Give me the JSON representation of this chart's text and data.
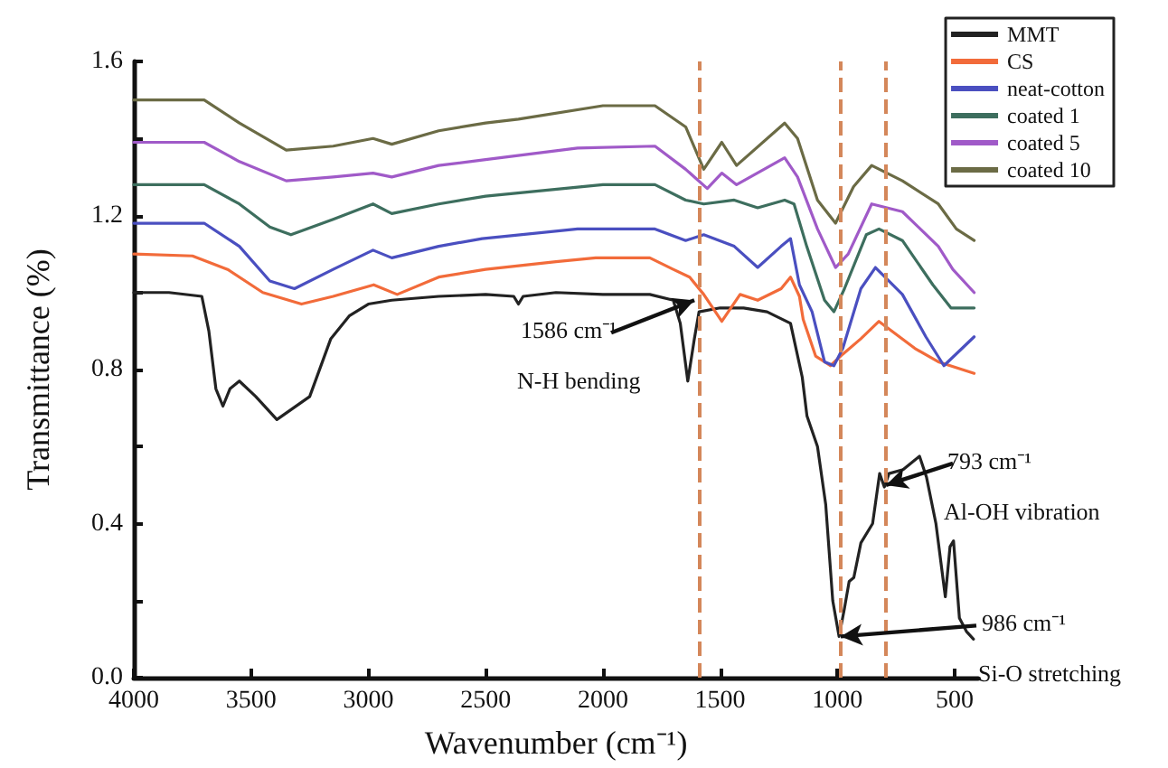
{
  "chart_data": {
    "type": "line",
    "xlabel": "Wavenumber (cm⁻¹)",
    "ylabel": "Transmittance (%)",
    "xlim": [
      4000,
      400
    ],
    "xticks": [
      4000,
      3500,
      3000,
      2500,
      2000,
      1500,
      1000,
      500
    ],
    "ylim": [
      0,
      1.6
    ],
    "yticks": [
      {
        "value": 0,
        "label": "0.0"
      },
      {
        "value": 0.2,
        "label": null
      },
      0.4,
      {
        "value": 0.6,
        "label": null
      },
      0.8,
      {
        "value": 1.0,
        "label": null
      },
      1.2,
      {
        "value": 1.4,
        "label": null
      },
      1.6
    ],
    "grid": false,
    "legend": "top right",
    "marker": "none",
    "line_style": "solid",
    "series": [
      {
        "name": "MMT",
        "color": "#222222",
        "x": [
          4000,
          3850,
          3710,
          3680,
          3650,
          3620,
          3590,
          3550,
          3480,
          3390,
          3320,
          3250,
          3160,
          3080,
          3000,
          2900,
          2700,
          2500,
          2380,
          2360,
          2340,
          2200,
          2000,
          1800,
          1700,
          1670,
          1638,
          1610,
          1590,
          1500,
          1400,
          1300,
          1200,
          1150,
          1130,
          1085,
          1050,
          1020,
          993,
          970,
          950,
          930,
          900,
          850,
          820,
          800,
          780,
          720,
          650,
          620,
          580,
          540,
          520,
          505,
          480,
          450,
          420
        ],
        "values": [
          1.0,
          1.0,
          0.99,
          0.9,
          0.75,
          0.705,
          0.75,
          0.77,
          0.73,
          0.67,
          0.7,
          0.73,
          0.88,
          0.94,
          0.97,
          0.98,
          0.99,
          0.995,
          0.99,
          0.97,
          0.99,
          1.0,
          0.995,
          0.995,
          0.98,
          0.92,
          0.77,
          0.88,
          0.95,
          0.96,
          0.96,
          0.95,
          0.92,
          0.78,
          0.68,
          0.6,
          0.45,
          0.2,
          0.107,
          0.18,
          0.25,
          0.26,
          0.35,
          0.4,
          0.53,
          0.495,
          0.53,
          0.54,
          0.575,
          0.52,
          0.4,
          0.21,
          0.34,
          0.355,
          0.155,
          0.12,
          0.1
        ]
      },
      {
        "name": "CS",
        "color": "#f26b3a",
        "x": [
          4000,
          3750,
          3600,
          3450,
          3285,
          3150,
          2977,
          2877,
          2700,
          2500,
          2200,
          2031,
          1800,
          1700,
          1630,
          1570,
          1493,
          1415,
          1340,
          1240,
          1200,
          1162,
          1146,
          1093,
          1055,
          1030,
          977,
          900,
          823,
          670,
          570,
          417
        ],
        "values": [
          1.1,
          1.095,
          1.06,
          1.0,
          0.97,
          0.99,
          1.02,
          0.995,
          1.04,
          1.06,
          1.08,
          1.09,
          1.09,
          1.06,
          1.04,
          0.995,
          0.925,
          0.995,
          0.98,
          1.01,
          1.04,
          0.99,
          0.93,
          0.835,
          0.82,
          0.81,
          0.84,
          0.88,
          0.925,
          0.855,
          0.82,
          0.79
        ]
      },
      {
        "name": "neat-cotton",
        "color": "#4a4fc0",
        "x": [
          4000,
          3700,
          3550,
          3420,
          3315,
          3150,
          2980,
          2900,
          2700,
          2515,
          2108,
          1778,
          1647,
          1570,
          1440,
          1340,
          1240,
          1200,
          1162,
          1108,
          1055,
          1015,
          977,
          900,
          838,
          723,
          623,
          546,
          417
        ],
        "values": [
          1.18,
          1.18,
          1.12,
          1.03,
          1.01,
          1.06,
          1.11,
          1.09,
          1.12,
          1.14,
          1.165,
          1.165,
          1.135,
          1.15,
          1.12,
          1.065,
          1.12,
          1.14,
          1.02,
          0.95,
          0.82,
          0.81,
          0.855,
          1.01,
          1.065,
          0.995,
          0.885,
          0.81,
          0.885
        ]
      },
      {
        "name": "coated 1",
        "color": "#3d6e5e",
        "x": [
          4000,
          3700,
          3550,
          3420,
          3330,
          3150,
          2980,
          2900,
          2700,
          2500,
          2000,
          1778,
          1647,
          1570,
          1440,
          1340,
          1225,
          1185,
          1131,
          1055,
          1015,
          970,
          877,
          823,
          723,
          593,
          516,
          417
        ],
        "values": [
          1.28,
          1.28,
          1.23,
          1.17,
          1.15,
          1.19,
          1.23,
          1.205,
          1.23,
          1.25,
          1.28,
          1.28,
          1.24,
          1.23,
          1.24,
          1.22,
          1.24,
          1.23,
          1.12,
          0.98,
          0.95,
          1.01,
          1.15,
          1.165,
          1.135,
          1.02,
          0.96,
          0.96
        ]
      },
      {
        "name": "coated 5",
        "color": "#a05ac8",
        "x": [
          4000,
          3700,
          3550,
          3350,
          3150,
          2980,
          2900,
          2700,
          2500,
          2108,
          1778,
          1647,
          1555,
          1493,
          1430,
          1225,
          1170,
          1085,
          1008,
          954,
          854,
          723,
          570,
          508,
          417
        ],
        "values": [
          1.39,
          1.39,
          1.34,
          1.29,
          1.3,
          1.31,
          1.3,
          1.33,
          1.345,
          1.375,
          1.38,
          1.32,
          1.27,
          1.31,
          1.28,
          1.35,
          1.3,
          1.165,
          1.065,
          1.1,
          1.23,
          1.21,
          1.12,
          1.06,
          1.0
        ]
      },
      {
        "name": "coated 10",
        "color": "#6b6b45",
        "x": [
          4000,
          3700,
          3550,
          3350,
          3150,
          2980,
          2900,
          2700,
          2500,
          2360,
          2000,
          1778,
          1647,
          1570,
          1493,
          1430,
          1225,
          1170,
          1085,
          1008,
          931,
          854,
          723,
          570,
          493,
          417
        ],
        "values": [
          1.5,
          1.5,
          1.44,
          1.37,
          1.38,
          1.4,
          1.385,
          1.42,
          1.44,
          1.45,
          1.485,
          1.485,
          1.43,
          1.32,
          1.39,
          1.33,
          1.44,
          1.4,
          1.24,
          1.18,
          1.275,
          1.33,
          1.29,
          1.23,
          1.165,
          1.135
        ]
      }
    ],
    "ref_lines": [
      {
        "axis": "x",
        "value": 1586,
        "color": "#d4875a",
        "line_style": "dashed"
      },
      {
        "axis": "x",
        "value": 986,
        "color": "#d4875a",
        "line_style": "dashed"
      },
      {
        "axis": "x",
        "value": 793,
        "color": "#d4875a",
        "line_style": "dashed"
      }
    ],
    "annotations": [
      {
        "text": "1586 cm⁻¹",
        "x": 1610,
        "y": 0.98
      },
      "N-H bending",
      {
        "text": "793 cm⁻¹",
        "x": 793,
        "y": 0.5
      },
      "Al-OH vibration",
      {
        "text": "986 cm⁻¹",
        "x": 986,
        "y": 0.107
      },
      "Si-O stretching"
    ]
  }
}
